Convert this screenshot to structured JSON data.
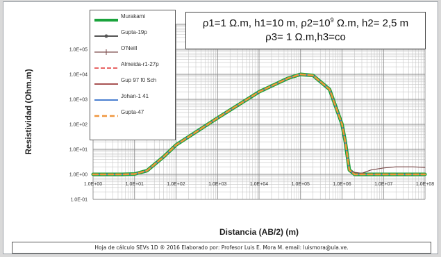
{
  "chart_data": {
    "type": "line",
    "title": "",
    "xlabel": "Distancia (AB/2) (m)",
    "ylabel": "Resistividad (Ohm.m)",
    "x_scale": "log",
    "y_scale": "log",
    "xlim": [
      1,
      100000000
    ],
    "ylim": [
      0.1,
      1000000
    ],
    "grid": true,
    "legend_position": "top-left",
    "x_tick_labels": [
      "1.0E+00",
      "1.0E+01",
      "1.0E+02",
      "1.0E+03",
      "1.0E+04",
      "1.0E+05",
      "1.0E+06",
      "1.0E+07",
      "1.0E+08"
    ],
    "y_tick_labels": [
      "1.0E-01",
      "1.0E+00",
      "1.0E+01",
      "1.0E+02",
      "1.0E+03",
      "1.0E+04",
      "1.0E+05"
    ],
    "parameters_line1": "ρ1=1 Ω.m, h1=10  m, ρ2=10",
    "parameters_exponent": "9",
    "parameters_line1_tail": " Ω.m, h2= 2,5 m",
    "parameters_line2": "ρ3= 1 Ω.m,h3=co",
    "series": [
      {
        "name": "Murakami",
        "color": "#1aa33c",
        "width": 5,
        "dash": "",
        "x": [
          1,
          2,
          5,
          10,
          20,
          50,
          100,
          1000,
          10000,
          50000,
          100000,
          200000,
          500000,
          1000000,
          1200000,
          1500000,
          2000000,
          5000000,
          100000000
        ],
        "y": [
          1,
          1,
          1,
          1.03,
          1.4,
          5,
          15,
          180,
          2000,
          7000,
          10000,
          9000,
          2500,
          100,
          20,
          1.5,
          1,
          1,
          1
        ]
      },
      {
        "name": "Gupta-19p",
        "color": "#555555",
        "width": 2,
        "dash": "",
        "x": [
          1,
          2,
          5,
          10,
          20,
          50,
          100,
          1000,
          10000,
          50000,
          100000,
          200000,
          500000,
          1000000,
          1200000,
          1500000,
          2000000,
          5000000,
          100000000
        ],
        "y": [
          1,
          1,
          1,
          1.03,
          1.4,
          5,
          15,
          180,
          2000,
          7000,
          10000,
          9000,
          2500,
          100,
          20,
          1.5,
          1,
          1,
          1
        ]
      },
      {
        "name": "O'Neill",
        "color": "#7a4a4a",
        "width": 1.2,
        "dash": "",
        "x": [
          1,
          2,
          5,
          10,
          20,
          50,
          100,
          1000,
          10000,
          50000,
          100000,
          200000,
          500000,
          1000000,
          1500000,
          2000000,
          3000000,
          5000000,
          10000000,
          20000000,
          50000000,
          100000000
        ],
        "y": [
          1,
          1,
          1,
          1.03,
          1.4,
          5,
          15,
          180,
          2000,
          7000,
          10000,
          9000,
          2500,
          100,
          1.5,
          1.2,
          1.1,
          1.5,
          1.8,
          2,
          2,
          1.9
        ]
      },
      {
        "name": "Almeida-r1-27p",
        "color": "#e03030",
        "width": 1.6,
        "dash": "6,3",
        "x": [
          1,
          2,
          5,
          10,
          20,
          50,
          100,
          1000,
          10000,
          50000,
          100000,
          200000,
          500000,
          1000000,
          1200000,
          1500000,
          2000000,
          5000000,
          100000000
        ],
        "y": [
          1,
          1,
          1,
          1.03,
          1.4,
          5,
          15,
          180,
          2000,
          7000,
          10000,
          9000,
          2500,
          100,
          20,
          1.5,
          1,
          1,
          1
        ]
      },
      {
        "name": "Gup 97 f0 Sch",
        "color": "#8b1a1a",
        "width": 1.6,
        "dash": "",
        "x": [
          1,
          2,
          5,
          10,
          20,
          50,
          100,
          1000,
          10000,
          50000,
          100000,
          200000,
          500000,
          1000000,
          1200000,
          1500000,
          2000000,
          5000000,
          100000000
        ],
        "y": [
          1,
          1,
          1,
          1.03,
          1.4,
          5,
          15,
          180,
          2000,
          7000,
          10000,
          9000,
          2500,
          100,
          20,
          1.5,
          1,
          1,
          1
        ]
      },
      {
        "name": "Johan-1 41",
        "color": "#4a7fd0",
        "width": 2,
        "dash": "",
        "x": [
          1,
          2,
          5,
          10,
          20,
          50,
          100,
          1000,
          10000,
          50000,
          100000,
          200000,
          500000,
          1000000,
          1200000,
          1500000,
          2000000,
          5000000,
          100000000
        ],
        "y": [
          1,
          1,
          1,
          1.03,
          1.4,
          5,
          15,
          180,
          2000,
          7000,
          10000,
          9000,
          2500,
          100,
          20,
          1.5,
          1,
          1,
          1
        ]
      },
      {
        "name": "Gupta-47",
        "color": "#f0963c",
        "width": 2.5,
        "dash": "7,4",
        "x": [
          1,
          2,
          5,
          10,
          20,
          50,
          100,
          1000,
          10000,
          50000,
          100000,
          200000,
          500000,
          1000000,
          1200000,
          1500000,
          2000000,
          5000000,
          100000000
        ],
        "y": [
          1,
          1,
          1,
          1.03,
          1.4,
          5,
          15,
          180,
          2000,
          7000,
          10000,
          9000,
          2500,
          100,
          20,
          1.5,
          1,
          1,
          1
        ]
      }
    ],
    "footer_note": "Hoja de cálculo  SEVs 1D ® 2016 Elaborado por: Profesor Luis E. Mora M. email: luismora@ula.ve."
  }
}
